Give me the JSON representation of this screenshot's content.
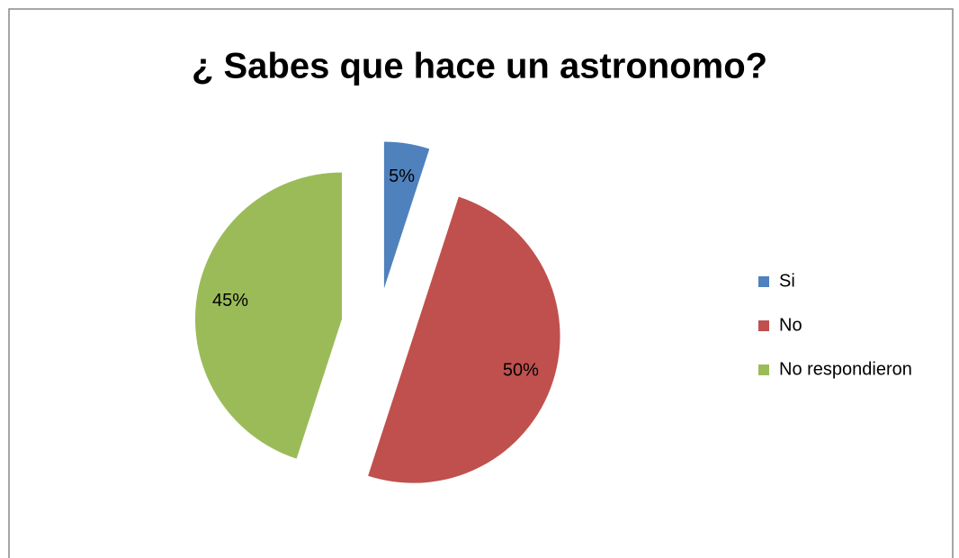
{
  "chart_data": {
    "type": "pie",
    "title": "¿ Sabes que hace un astronomo?",
    "categories": [
      "Si",
      "No",
      "No respondieron"
    ],
    "values": [
      5,
      50,
      45
    ],
    "value_labels": [
      "5%",
      "50%",
      "45%"
    ],
    "colors": [
      "#4f81bd",
      "#c0504d",
      "#9bbb59"
    ],
    "legend": "right"
  }
}
